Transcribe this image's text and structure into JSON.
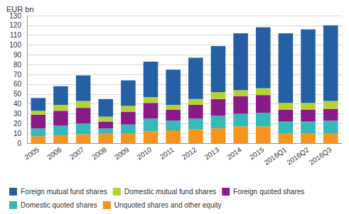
{
  "chart_data": {
    "type": "bar",
    "stacked": true,
    "ylabel": "EUR bn",
    "categories": [
      "2005",
      "2006",
      "2007",
      "2008",
      "2009",
      "2010",
      "2011",
      "2012",
      "2013",
      "2014",
      "2015",
      "2016Q1",
      "2016Q2",
      "2016Q3"
    ],
    "series": [
      {
        "name": "Unquoted shares and other equity",
        "color": "#f7941d",
        "values": [
          7,
          8,
          9,
          10,
          10,
          12,
          13,
          14,
          15,
          17,
          17,
          10,
          10,
          10
        ]
      },
      {
        "name": "Domestic quoted shares",
        "color": "#34b8b8",
        "values": [
          8,
          10,
          11,
          5,
          9,
          13,
          10,
          11,
          13,
          13,
          14,
          12,
          12,
          13
        ]
      },
      {
        "name": "Foreign quoted shares",
        "color": "#8b1a89",
        "values": [
          14,
          15,
          16,
          7,
          13,
          16,
          11,
          14,
          17,
          18,
          18,
          12,
          12,
          12
        ]
      },
      {
        "name": "Domestic mutual fund shares",
        "color": "#b3d335",
        "values": [
          4,
          6,
          7,
          5,
          6,
          6,
          5,
          6,
          7,
          6,
          7,
          7,
          7,
          8
        ]
      },
      {
        "name": "Foreign mutual fund shares",
        "color": "#2660a4",
        "values": [
          13,
          19,
          26,
          18,
          26,
          36,
          36,
          42,
          47,
          58,
          62,
          71,
          75,
          77
        ]
      }
    ],
    "ylim": [
      0,
      130
    ],
    "yticks": [
      0,
      10,
      20,
      30,
      40,
      50,
      60,
      70,
      80,
      90,
      100,
      110,
      120,
      130
    ],
    "grid": true,
    "legend": "bottom"
  }
}
